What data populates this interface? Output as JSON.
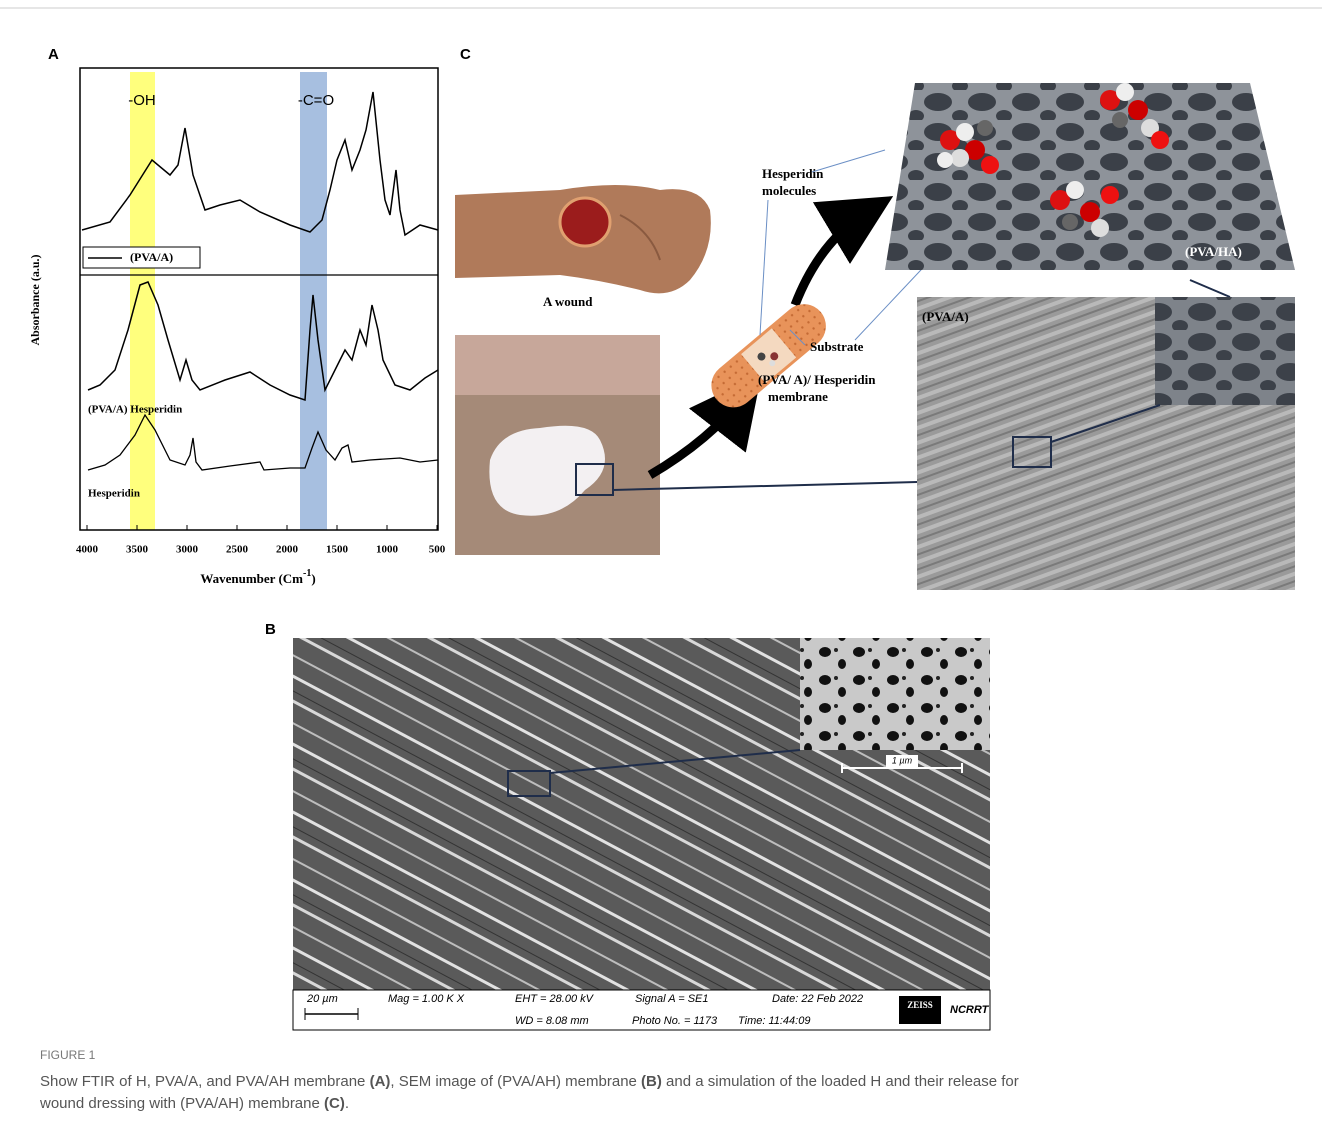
{
  "panel_a": {
    "label": "A",
    "y_label": "Absorbance (a.u.)",
    "x_label": "Wavenumber (Cm",
    "x_label_exponent": "-1",
    "x_label_end": ")",
    "xlim": [
      4000,
      500
    ],
    "xticks": [
      4000,
      3500,
      3000,
      2500,
      2000,
      1500,
      1000,
      500
    ],
    "band_labels": [
      "-OH",
      "-C=O"
    ],
    "legend": "(PVA/A)",
    "curve_labels": [
      "(PVA/A) Hesperidin",
      "Hesperidin"
    ]
  },
  "panel_c": {
    "label": "C",
    "wound_label": "A wound",
    "molecules_label": [
      "Hesperidin",
      "molecules"
    ],
    "substrate_label": "Substrate",
    "membrane_label": [
      "(PVA/ A)/ Hesperidin",
      "membrane"
    ],
    "mesh_label": "(PVA/HA)",
    "sem_label": "(PVA/A)"
  },
  "panel_b": {
    "label": "B",
    "inset_scale": "1 µm",
    "info": {
      "scale": "20 µm",
      "mag": "Mag =  1.00 K X",
      "eht": "EHT = 28.00 kV",
      "signal": "Signal A = SE1",
      "date": "Date: 22 Feb 2022",
      "wd": "WD = 8.08 mm",
      "photo": "Photo No. = 1173",
      "time": "Time: 11:44:09",
      "brand": "ZEISS",
      "lab": "NCRRT"
    }
  },
  "figure": {
    "label": "FIGURE 1",
    "caption_lines": [
      [
        {
          "text": "Show FTIR of H, PVA/A, and PVA/AH membrane ",
          "bold": false
        },
        {
          "text": "(A)",
          "bold": true
        },
        {
          "text": ", SEM image of (PVA/AH) membrane ",
          "bold": false
        },
        {
          "text": "(B)",
          "bold": true
        },
        {
          "text": " and a simulation of the loaded H and their release for",
          "bold": false
        }
      ],
      [
        {
          "text": "wound dressing with (PVA/AH) membrane ",
          "bold": false
        },
        {
          "text": "(C)",
          "bold": true
        },
        {
          "text": ".",
          "bold": false
        }
      ]
    ]
  }
}
